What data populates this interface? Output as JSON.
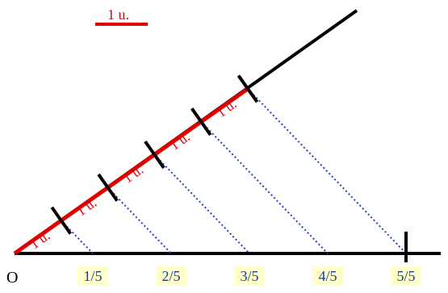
{
  "scale": {
    "label": "1 u.",
    "color": "#e00000"
  },
  "origin_label": "O",
  "unit_labels": [
    "1 u.",
    "1 u.",
    "1 u.",
    "1 u.",
    "1 u."
  ],
  "fractions": [
    "1/5",
    "2/5",
    "3/5",
    "4/5",
    "5/5"
  ],
  "colors": {
    "axis": "#000000",
    "segments": "#e00000",
    "parallels": "#2a3fbf",
    "fraction_box": "#ffffcc",
    "fraction_text": "#1d3f8f"
  }
}
